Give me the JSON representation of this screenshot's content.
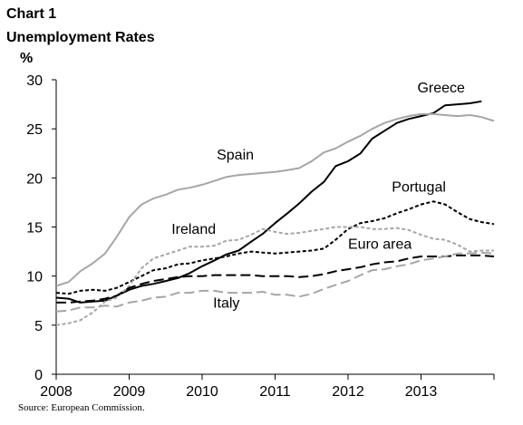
{
  "chart_data": {
    "type": "line",
    "title": "Chart 1",
    "subtitle": "Unemployment Rates",
    "ylabel": "%",
    "ylim": [
      0,
      30
    ],
    "yticks": [
      0,
      5,
      10,
      15,
      20,
      25,
      30
    ],
    "xlim": [
      2008.0,
      2014.0
    ],
    "xticks": [
      2008,
      2009,
      2010,
      2011,
      2012,
      2013
    ],
    "grid": false,
    "legend": "none (labels placed next to lines)",
    "source": "Source: European Commission.",
    "series": [
      {
        "name": "Greece",
        "color": "#000000",
        "style": "solid",
        "x": [
          2008.0,
          2008.17,
          2008.33,
          2008.5,
          2008.67,
          2008.83,
          2009.0,
          2009.17,
          2009.33,
          2009.5,
          2009.67,
          2009.83,
          2010.0,
          2010.17,
          2010.33,
          2010.5,
          2010.67,
          2010.83,
          2011.0,
          2011.17,
          2011.33,
          2011.5,
          2011.67,
          2011.83,
          2012.0,
          2012.17,
          2012.33,
          2012.5,
          2012.67,
          2012.83,
          2013.0,
          2013.17,
          2013.33,
          2013.5,
          2013.67,
          2013.83
        ],
        "values": [
          7.8,
          7.7,
          7.3,
          7.4,
          7.5,
          8.0,
          8.6,
          9.0,
          9.2,
          9.5,
          9.8,
          10.3,
          11.0,
          11.6,
          12.2,
          12.6,
          13.5,
          14.3,
          15.4,
          16.4,
          17.4,
          18.6,
          19.6,
          21.2,
          21.7,
          22.5,
          24.0,
          24.8,
          25.6,
          26.0,
          26.3,
          26.6,
          27.4,
          27.5,
          27.6,
          27.8
        ]
      },
      {
        "name": "Spain",
        "color": "#a6a6a6",
        "style": "solid",
        "x": [
          2008.0,
          2008.17,
          2008.33,
          2008.5,
          2008.67,
          2008.83,
          2009.0,
          2009.17,
          2009.33,
          2009.5,
          2009.67,
          2009.83,
          2010.0,
          2010.17,
          2010.33,
          2010.5,
          2010.67,
          2010.83,
          2011.0,
          2011.17,
          2011.33,
          2011.5,
          2011.67,
          2011.83,
          2012.0,
          2012.17,
          2012.33,
          2012.5,
          2012.67,
          2012.83,
          2013.0,
          2013.17,
          2013.33,
          2013.5,
          2013.67,
          2013.83,
          2014.0
        ],
        "values": [
          9.0,
          9.4,
          10.5,
          11.3,
          12.3,
          14.0,
          16.0,
          17.3,
          17.9,
          18.3,
          18.8,
          19.0,
          19.3,
          19.7,
          20.1,
          20.3,
          20.4,
          20.5,
          20.6,
          20.8,
          21.0,
          21.7,
          22.6,
          23.0,
          23.7,
          24.3,
          25.0,
          25.6,
          26.0,
          26.3,
          26.5,
          26.5,
          26.4,
          26.3,
          26.4,
          26.2,
          25.8
        ]
      },
      {
        "name": "Portugal",
        "color": "#000000",
        "style": "dotted",
        "x": [
          2008.0,
          2008.17,
          2008.33,
          2008.5,
          2008.67,
          2008.83,
          2009.0,
          2009.17,
          2009.33,
          2009.5,
          2009.67,
          2009.83,
          2010.0,
          2010.17,
          2010.33,
          2010.5,
          2010.67,
          2010.83,
          2011.0,
          2011.17,
          2011.33,
          2011.5,
          2011.67,
          2011.83,
          2012.0,
          2012.17,
          2012.33,
          2012.5,
          2012.67,
          2012.83,
          2013.0,
          2013.17,
          2013.33,
          2013.5,
          2013.67,
          2013.83,
          2014.0
        ],
        "values": [
          8.3,
          8.2,
          8.5,
          8.6,
          8.5,
          8.8,
          9.4,
          10.0,
          10.6,
          10.8,
          11.2,
          11.3,
          11.6,
          11.8,
          12.0,
          12.3,
          12.5,
          12.4,
          12.3,
          12.4,
          12.5,
          12.6,
          12.8,
          13.7,
          14.8,
          15.4,
          15.6,
          15.9,
          16.4,
          16.8,
          17.3,
          17.6,
          17.3,
          16.5,
          15.8,
          15.5,
          15.3
        ]
      },
      {
        "name": "Ireland",
        "color": "#a6a6a6",
        "style": "dotted",
        "x": [
          2008.0,
          2008.17,
          2008.33,
          2008.5,
          2008.67,
          2008.83,
          2009.0,
          2009.17,
          2009.33,
          2009.5,
          2009.67,
          2009.83,
          2010.0,
          2010.17,
          2010.33,
          2010.5,
          2010.67,
          2010.83,
          2011.0,
          2011.17,
          2011.33,
          2011.5,
          2011.67,
          2011.83,
          2012.0,
          2012.17,
          2012.33,
          2012.5,
          2012.67,
          2012.83,
          2013.0,
          2013.17,
          2013.33,
          2013.5,
          2013.67,
          2013.83,
          2014.0
        ],
        "values": [
          5.0,
          5.2,
          5.5,
          6.3,
          7.4,
          7.8,
          9.0,
          10.8,
          11.8,
          12.2,
          12.6,
          13.0,
          13.0,
          13.1,
          13.6,
          13.7,
          14.2,
          14.8,
          14.5,
          14.3,
          14.4,
          14.6,
          14.8,
          15.0,
          15.0,
          15.0,
          14.8,
          14.8,
          14.9,
          14.7,
          14.2,
          13.8,
          13.7,
          13.2,
          12.5,
          12.6,
          12.6
        ]
      },
      {
        "name": "Euro area",
        "color": "#000000",
        "style": "dashed",
        "x": [
          2008.0,
          2008.17,
          2008.33,
          2008.5,
          2008.67,
          2008.83,
          2009.0,
          2009.17,
          2009.33,
          2009.5,
          2009.67,
          2009.83,
          2010.0,
          2010.17,
          2010.33,
          2010.5,
          2010.67,
          2010.83,
          2011.0,
          2011.17,
          2011.33,
          2011.5,
          2011.67,
          2011.83,
          2012.0,
          2012.17,
          2012.33,
          2012.5,
          2012.67,
          2012.83,
          2013.0,
          2013.17,
          2013.33,
          2013.5,
          2013.67,
          2013.83,
          2014.0
        ],
        "values": [
          7.3,
          7.3,
          7.4,
          7.5,
          7.7,
          8.0,
          8.8,
          9.2,
          9.5,
          9.7,
          9.9,
          10.0,
          10.0,
          10.1,
          10.1,
          10.1,
          10.1,
          10.0,
          10.0,
          10.0,
          9.9,
          10.0,
          10.2,
          10.5,
          10.7,
          10.9,
          11.2,
          11.4,
          11.5,
          11.8,
          12.0,
          12.0,
          12.0,
          12.1,
          12.1,
          12.1,
          12.0
        ]
      },
      {
        "name": "Italy",
        "color": "#a6a6a6",
        "style": "dashed",
        "x": [
          2008.0,
          2008.17,
          2008.33,
          2008.5,
          2008.67,
          2008.83,
          2009.0,
          2009.17,
          2009.33,
          2009.5,
          2009.67,
          2009.83,
          2010.0,
          2010.17,
          2010.33,
          2010.5,
          2010.67,
          2010.83,
          2011.0,
          2011.17,
          2011.33,
          2011.5,
          2011.67,
          2011.83,
          2012.0,
          2012.17,
          2012.33,
          2012.5,
          2012.67,
          2012.83,
          2013.0,
          2013.17,
          2013.33,
          2013.5,
          2013.67,
          2013.83,
          2014.0
        ],
        "values": [
          6.4,
          6.5,
          6.8,
          6.8,
          7.0,
          6.9,
          7.3,
          7.5,
          7.8,
          7.9,
          8.3,
          8.3,
          8.5,
          8.5,
          8.3,
          8.3,
          8.3,
          8.4,
          8.1,
          8.1,
          7.9,
          8.2,
          8.7,
          9.1,
          9.5,
          10.1,
          10.6,
          10.7,
          11.0,
          11.2,
          11.6,
          11.8,
          12.0,
          12.3,
          12.3,
          12.4,
          12.3
        ]
      }
    ],
    "labels": [
      {
        "series": "Greece",
        "text": "Greece",
        "x": 2012.95,
        "y": 28.7
      },
      {
        "series": "Spain",
        "text": "Spain",
        "x": 2010.2,
        "y": 21.9
      },
      {
        "series": "Portugal",
        "text": "Portugal",
        "x": 2012.6,
        "y": 18.6
      },
      {
        "series": "Ireland",
        "text": "Ireland",
        "x": 2009.58,
        "y": 14.3
      },
      {
        "series": "Euro area",
        "text": "Euro area",
        "x": 2012.0,
        "y": 12.8
      },
      {
        "series": "Italy",
        "text": "Italy",
        "x": 2010.15,
        "y": 6.8
      }
    ]
  }
}
